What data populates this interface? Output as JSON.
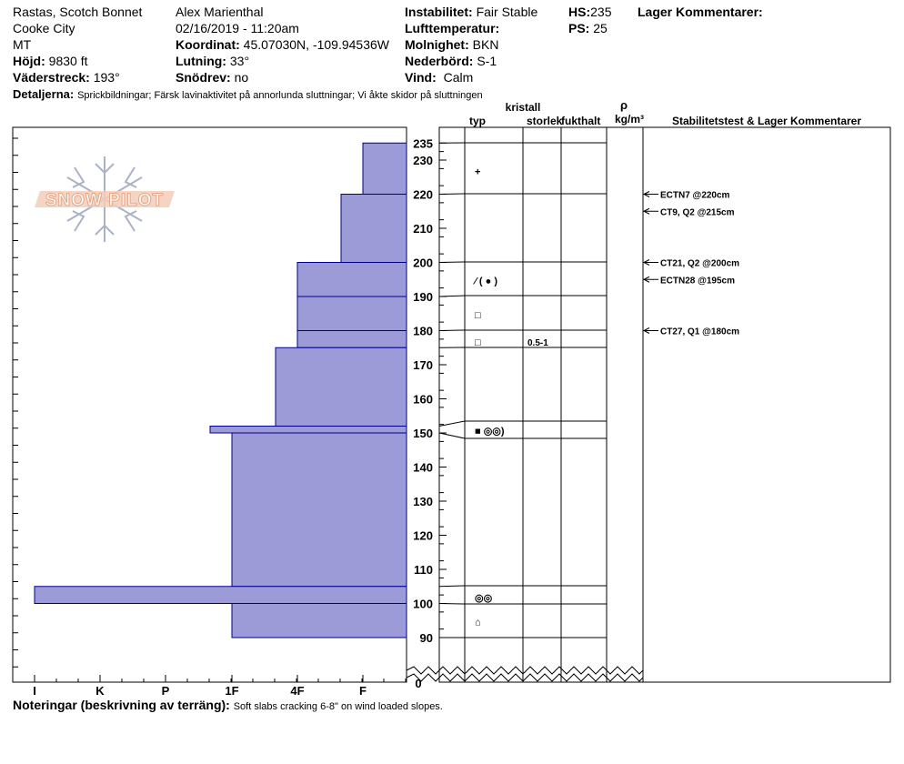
{
  "header": {
    "site_name": "Rastas, Scotch Bonnet",
    "city": "Cooke City",
    "state": "MT",
    "elevation_label": "Höjd:",
    "elevation": "9830 ft",
    "aspect_label": "Väderstreck:",
    "aspect": "193°",
    "details_label": "Detaljerna:",
    "details": "Sprickbildningar;  Färsk lavinaktivitet på annorlunda sluttningar;  Vi åkte skidor på sluttningen",
    "observer": "Alex Marienthal",
    "datetime": "02/16/2019 - 11:20am",
    "coord_label": "Koordinat:",
    "coord": "45.07030N, -109.94536W",
    "slope_label": "Lutning:",
    "slope": "33°",
    "wind_loading_label": "Snödrev:",
    "wind_loading": "no",
    "stability_label": "Instabilitet:",
    "stability": "Fair Stable",
    "air_temp_label": "Lufttemperatur:",
    "air_temp": "",
    "sky_label": "Molnighet:",
    "sky": "BKN",
    "precip_label": "Nederbörd:",
    "precip": "S-1",
    "wind_label": "Vind:",
    "wind": "Calm",
    "hs_label": "HS:",
    "hs": "235",
    "ps_label": "PS:",
    "ps": "25",
    "layer_comments_label": "Lager Kommentarer:"
  },
  "columns": {
    "crystal": "kristall",
    "type": "typ",
    "size": "storlek",
    "moisture": "fukthalt",
    "rho": "ρ",
    "density_unit": "kg/m³",
    "stability_comments": "Stabilitetstest & Lager Kommentarer"
  },
  "notes_label": "Noteringar (beskrivning av terräng):",
  "notes": "Soft slabs cracking 6-8\" on wind loaded slopes.",
  "logo_text": "SNOW PILOT",
  "colors": {
    "hardness_fill": "#9C9BD8",
    "hardness_stroke": "#00008B",
    "logo": "#E8A583"
  },
  "chart_data": {
    "type": "bar",
    "title": "",
    "xlabel": "",
    "ylabel": "",
    "hardness_ticks": [
      "I",
      "K",
      "P",
      "1F",
      "4F",
      "F"
    ],
    "height_ticks": [
      90,
      100,
      110,
      120,
      130,
      140,
      150,
      160,
      170,
      180,
      190,
      200,
      210,
      220,
      230,
      235
    ],
    "height_zero_label": "0",
    "height_range_cm": [
      90,
      235
    ],
    "hardness_layers": [
      {
        "top": 235,
        "bottom": 220,
        "hardness": "F"
      },
      {
        "top": 220,
        "bottom": 200,
        "hardness": "F+"
      },
      {
        "top": 200,
        "bottom": 190,
        "hardness": "4F+"
      },
      {
        "top": 190,
        "bottom": 180,
        "hardness": "4F+"
      },
      {
        "top": 180,
        "bottom": 175,
        "hardness": "4F+"
      },
      {
        "top": 175,
        "bottom": 152,
        "hardness": "4F"
      },
      {
        "top": 152,
        "bottom": 150,
        "hardness": "1F+"
      },
      {
        "top": 150,
        "bottom": 105,
        "hardness": "1F"
      },
      {
        "top": 105,
        "bottom": 100,
        "hardness": "I"
      },
      {
        "top": 100,
        "bottom": 90,
        "hardness": "1F"
      }
    ],
    "layer_boundaries_cm": [
      235,
      220,
      200,
      190,
      180,
      175,
      152,
      150,
      105,
      100,
      90
    ],
    "grain_symbols": [
      {
        "height": 227,
        "symbol": "+"
      },
      {
        "height": 195,
        "symbol": "⁄ ( ● )"
      },
      {
        "height": 185,
        "symbol": "□"
      },
      {
        "height": 177,
        "symbol": "□",
        "size": "0.5-1"
      },
      {
        "height": 151,
        "symbol": "■ ◎◎)"
      },
      {
        "height": 102,
        "symbol": "◎◎"
      },
      {
        "height": 95,
        "symbol": "⌂"
      }
    ],
    "stability_tests": [
      {
        "height": 220,
        "label": "ECTN7 @220cm"
      },
      {
        "height": 215,
        "label": "CT9, Q2 @215cm"
      },
      {
        "height": 200,
        "label": "CT21, Q2 @200cm"
      },
      {
        "height": 195,
        "label": "ECTN28 @195cm"
      },
      {
        "height": 180,
        "label": "CT27, Q1 @180cm"
      }
    ]
  }
}
